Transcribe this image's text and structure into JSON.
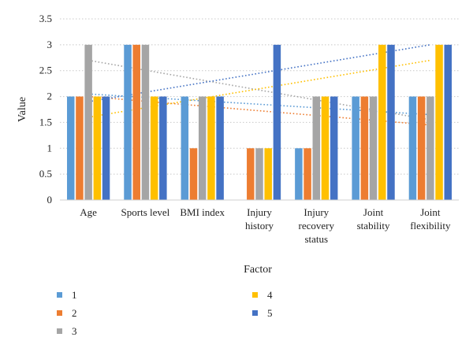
{
  "chart_data": {
    "type": "bar",
    "title": "",
    "xlabel": "Factor",
    "ylabel": "Value",
    "ylim": [
      0,
      3.5
    ],
    "yticks": [
      0,
      0.5,
      1,
      1.5,
      2,
      2.5,
      3,
      3.5
    ],
    "ytick_labels": [
      "0",
      "0.5",
      "1",
      "1.5",
      "2",
      "2.5",
      "3",
      "3.5"
    ],
    "grid": "horizontal dotted",
    "legend_placement": "bottom",
    "categories": [
      [
        "Age"
      ],
      [
        "Sports level"
      ],
      [
        "BMI index"
      ],
      [
        "Injury",
        "history"
      ],
      [
        "Injury",
        "recovery",
        "status"
      ],
      [
        "Joint",
        "stability"
      ],
      [
        "Joint",
        "flexibility"
      ]
    ],
    "series": [
      {
        "name": "1",
        "color": "#5B9BD5",
        "values": [
          2,
          3,
          2,
          0,
          1,
          2,
          2
        ]
      },
      {
        "name": "2",
        "color": "#ED7D31",
        "values": [
          2,
          3,
          1,
          1,
          1,
          2,
          2
        ]
      },
      {
        "name": "3",
        "color": "#A5A5A5",
        "values": [
          3,
          3,
          2,
          1,
          2,
          2,
          2
        ]
      },
      {
        "name": "4",
        "color": "#FFC000",
        "values": [
          2,
          2,
          2,
          1,
          2,
          3,
          3
        ]
      },
      {
        "name": "5",
        "color": "#4472C4",
        "values": [
          2,
          2,
          2,
          3,
          2,
          3,
          3
        ]
      }
    ],
    "trendlines": [
      {
        "series": "3",
        "type": "linear",
        "from": 2.7,
        "to": 1.55
      },
      {
        "series": "2",
        "type": "linear",
        "from": 2.0,
        "to": 1.45
      },
      {
        "series": "4",
        "type": "linear",
        "from": 1.6,
        "to": 2.7
      },
      {
        "series": "5",
        "type": "linear",
        "from": 1.9,
        "to": 3.0
      },
      {
        "series": "1",
        "type": "linear",
        "from": 2.05,
        "to": 1.65
      }
    ]
  }
}
